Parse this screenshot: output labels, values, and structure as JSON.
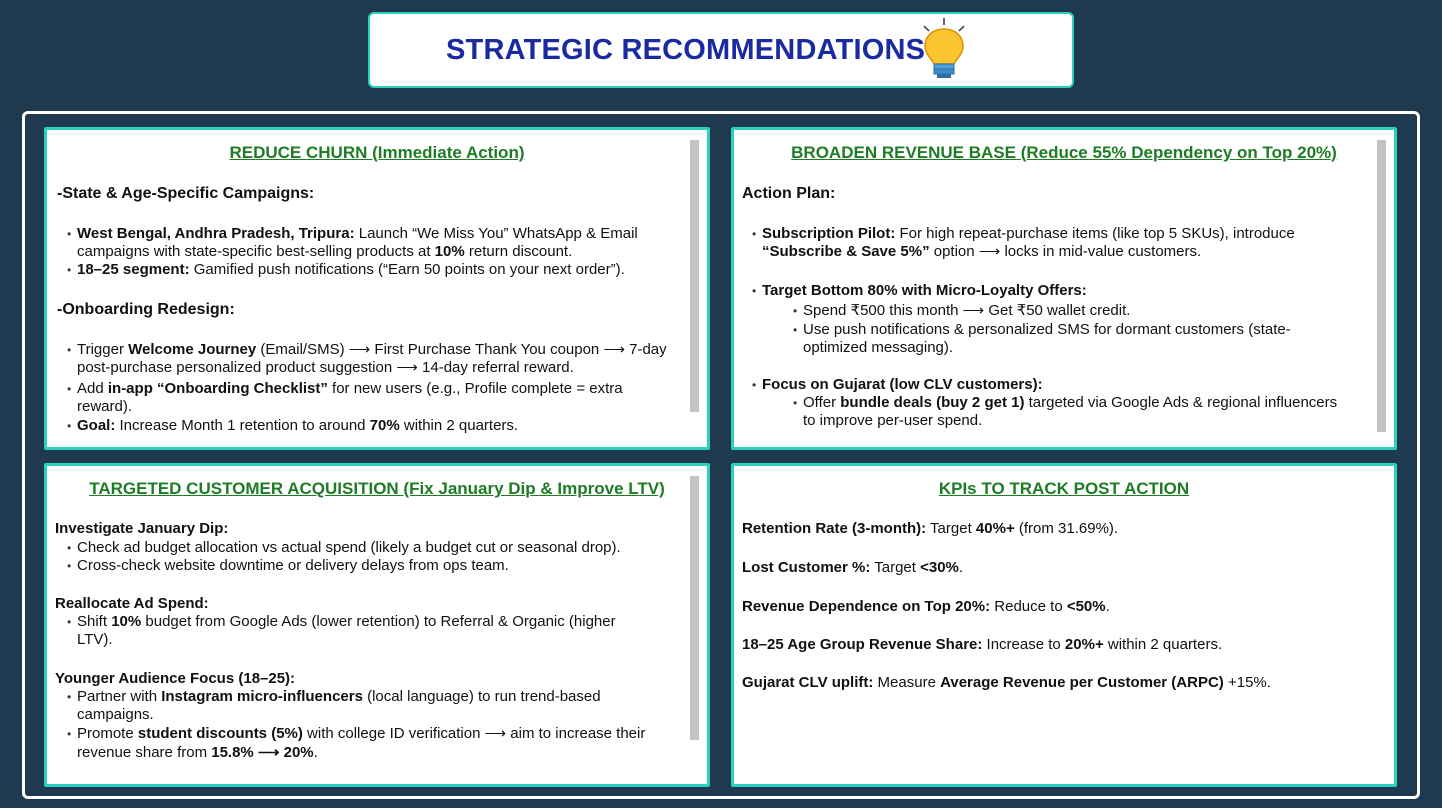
{
  "page_title": "STRATEGIC RECOMMENDATIONS",
  "reduce_churn": {
    "title": "REDUCE CHURN (Immediate Action)",
    "state_heading": "-State & Age-Specific Campaigns:",
    "b1_bold": "West Bengal, Andhra Pradesh, Tripura:",
    "b1_rest": " Launch “We Miss You” WhatsApp & Email",
    "b1_line2_pre": "campaigns with state-specific best-selling products at ",
    "b1_line2_bold": "10%",
    "b1_line2_post": " return discount.",
    "b2_bold": "18–25 segment:",
    "b2_rest": " Gamified push notifications (“Earn 50 points on your next order”).",
    "onboard_heading": "-Onboarding Redesign:",
    "b3_pre": "Trigger ",
    "b3_bold": "Welcome Journey",
    "b3_post": " (Email/SMS) ⟶ First Purchase Thank You coupon ⟶ 7-day",
    "b3_line2": "post-purchase personalized product suggestion ⟶ 14-day referral reward.",
    "b4_pre": "Add ",
    "b4_bold": "in-app “Onboarding Checklist”",
    "b4_post": " for new users (e.g., Profile complete = extra",
    "b4_line2": "reward).",
    "b5_bold": "Goal:",
    "b5_pre": " Increase Month 1 retention to  around ",
    "b5_bold2": "70%",
    "b5_post": " within 2 quarters."
  },
  "revenue_base": {
    "title": "BROADEN REVENUE BASE (Reduce 55% Dependency on Top 20%)",
    "action_heading": "Action Plan:",
    "s1_bold": "Subscription Pilot:",
    "s1_rest": " For high repeat-purchase items (like top 5 SKUs), introduce",
    "s1_line2_bold": "“Subscribe & Save 5%”",
    "s1_line2_post": " option ⟶ locks in mid-value customers.",
    "s2_bold": "Target Bottom 80% with Micro-Loyalty Offers:",
    "s2_sub1": "Spend ₹500 this month ⟶ Get ₹50 wallet credit.",
    "s2_sub2": "Use push notifications & personalized SMS for dormant customers (state-",
    "s2_sub2_line2": "optimized messaging).",
    "s3_bold": "Focus on Gujarat (low CLV customers):",
    "s3_sub1_pre": "Offer ",
    "s3_sub1_bold": "bundle deals (buy 2 get 1)",
    "s3_sub1_post": " targeted via Google Ads & regional influencers",
    "s3_sub1_line2": "to improve per-user spend."
  },
  "acquisition": {
    "title": "TARGETED CUSTOMER ACQUISITION (Fix January Dip & Improve LTV)",
    "h1": "Investigate January Dip:",
    "a1": "Check ad budget allocation vs actual spend (likely a budget cut or seasonal drop).",
    "a2": "Cross-check website downtime or delivery delays from ops team.",
    "h2": "Reallocate Ad Spend:",
    "a3_pre": "Shift ",
    "a3_bold": "10%",
    "a3_post": " budget from Google Ads (lower retention) to Referral & Organic (higher",
    "a3_line2": "LTV).",
    "h3": "Younger Audience Focus (18–25):",
    "a4_pre": "Partner with ",
    "a4_bold": "Instagram micro-influencers",
    "a4_post": " (local language) to run trend-based",
    "a4_line2": "campaigns.",
    "a5_pre": "Promote ",
    "a5_bold": "student discounts (5%)",
    "a5_post": " with college ID verification ⟶ aim to increase their",
    "a5_line2_pre": "revenue share from ",
    "a5_line2_bold": "15.8% ⟶ 20%",
    "a5_line2_post": "."
  },
  "kpis": {
    "title": "KPIs TO TRACK POST ACTION",
    "k1_bold": "Retention Rate (3-month):",
    "k1_pre": " Target ",
    "k1_bold2": "40%+",
    "k1_post": " (from 31.69%).",
    "k2_bold": "Lost Customer %:",
    "k2_pre": " Target ",
    "k2_bold2": "<30%",
    "k2_post": ".",
    "k3_bold": "Revenue Dependence on Top 20%:",
    "k3_pre": " Reduce to ",
    "k3_bold2": "<50%",
    "k3_post": ".",
    "k4_bold": "18–25 Age Group Revenue Share:",
    "k4_pre": " Increase to ",
    "k4_bold2": "20%+",
    "k4_post": " within 2 quarters.",
    "k5_bold": "Gujarat CLV uplift:",
    "k5_pre": " Measure ",
    "k5_bold2": "Average Revenue per Customer (ARPC)",
    "k5_post": " +15%."
  }
}
